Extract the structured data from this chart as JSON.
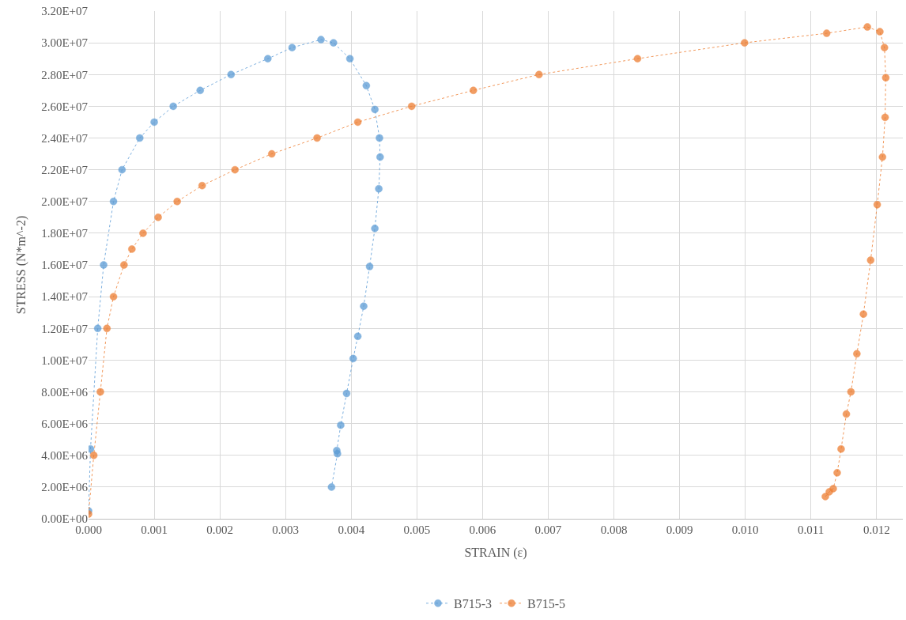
{
  "chart_data": {
    "type": "line",
    "xlabel": "STRAIN (ε)",
    "ylabel": "STRESS (N*m^-2)",
    "xlim": [
      0,
      0.0124
    ],
    "ylim": [
      0,
      32000000
    ],
    "xticks": [
      {
        "value": 0,
        "label": "0.000"
      },
      {
        "value": 0.001,
        "label": "0.001"
      },
      {
        "value": 0.002,
        "label": "0.002"
      },
      {
        "value": 0.003,
        "label": "0.003"
      },
      {
        "value": 0.004,
        "label": "0.004"
      },
      {
        "value": 0.005,
        "label": "0.005"
      },
      {
        "value": 0.006,
        "label": "0.006"
      },
      {
        "value": 0.007,
        "label": "0.007"
      },
      {
        "value": 0.008,
        "label": "0.008"
      },
      {
        "value": 0.009,
        "label": "0.009"
      },
      {
        "value": 0.01,
        "label": "0.010"
      },
      {
        "value": 0.011,
        "label": "0.011"
      },
      {
        "value": 0.012,
        "label": "0.012"
      }
    ],
    "yticks": [
      {
        "value": 0,
        "label": "0.00E+00"
      },
      {
        "value": 2000000,
        "label": "2.00E+06"
      },
      {
        "value": 4000000,
        "label": "4.00E+06"
      },
      {
        "value": 6000000,
        "label": "6.00E+06"
      },
      {
        "value": 8000000,
        "label": "8.00E+06"
      },
      {
        "value": 10000000,
        "label": "1.00E+07"
      },
      {
        "value": 12000000,
        "label": "1.20E+07"
      },
      {
        "value": 14000000,
        "label": "1.40E+07"
      },
      {
        "value": 16000000,
        "label": "1.60E+07"
      },
      {
        "value": 18000000,
        "label": "1.80E+07"
      },
      {
        "value": 20000000,
        "label": "2.00E+07"
      },
      {
        "value": 22000000,
        "label": "2.20E+07"
      },
      {
        "value": 24000000,
        "label": "2.40E+07"
      },
      {
        "value": 26000000,
        "label": "2.60E+07"
      },
      {
        "value": 28000000,
        "label": "2.80E+07"
      },
      {
        "value": 30000000,
        "label": "3.00E+07"
      },
      {
        "value": 32000000,
        "label": "3.20E+07"
      }
    ],
    "grid": true,
    "legend": "bottom",
    "marker": "circle",
    "line_style": "dotted",
    "series": [
      {
        "name": "B715-3",
        "color": "#5b9bd5",
        "x": [
          0.0,
          3e-05,
          0.00014,
          0.00023,
          0.00038,
          0.00051,
          0.00078,
          0.001,
          0.00129,
          0.0017,
          0.00217,
          0.00273,
          0.0031,
          0.00354,
          0.00373,
          0.00398,
          0.00423,
          0.00436,
          0.00443,
          0.00444,
          0.00442,
          0.00436,
          0.00428,
          0.00419,
          0.0041,
          0.00403,
          0.00393,
          0.00384,
          0.00378,
          0.00379,
          0.0037
        ],
        "values": [
          500000,
          4400000,
          12000000,
          16000000,
          20000000,
          22000000,
          24000000,
          25000000,
          26000000,
          27000000,
          28000000,
          29000000,
          29700000,
          30200000,
          30000000,
          29000000,
          27300000,
          25800000,
          24000000,
          22800000,
          20800000,
          18300000,
          15900000,
          13400000,
          11500000,
          10100000,
          7900000,
          5900000,
          4300000,
          4100000,
          2000000
        ]
      },
      {
        "name": "B715-5",
        "color": "#ed7d31",
        "x": [
          0.0,
          8e-05,
          0.00018,
          0.00028,
          0.00038,
          0.00054,
          0.00066,
          0.00083,
          0.00106,
          0.00135,
          0.00173,
          0.00223,
          0.00279,
          0.00348,
          0.0041,
          0.00492,
          0.00586,
          0.00686,
          0.00836,
          0.00999,
          0.01124,
          0.01186,
          0.01205,
          0.01212,
          0.01214,
          0.01213,
          0.01209,
          0.01201,
          0.01191,
          0.0118,
          0.0117,
          0.01161,
          0.01154,
          0.01146,
          0.0114,
          0.01134,
          0.01128,
          0.01122
        ],
        "values": [
          300000,
          4000000,
          8000000,
          12000000,
          14000000,
          16000000,
          17000000,
          18000000,
          19000000,
          20000000,
          21000000,
          22000000,
          23000000,
          24000000,
          25000000,
          26000000,
          27000000,
          28000000,
          29000000,
          30000000,
          30600000,
          31000000,
          30700000,
          29700000,
          27800000,
          25300000,
          22800000,
          19800000,
          16300000,
          12900000,
          10400000,
          8000000,
          6600000,
          4400000,
          2900000,
          1900000,
          1700000,
          1400000
        ]
      }
    ]
  }
}
